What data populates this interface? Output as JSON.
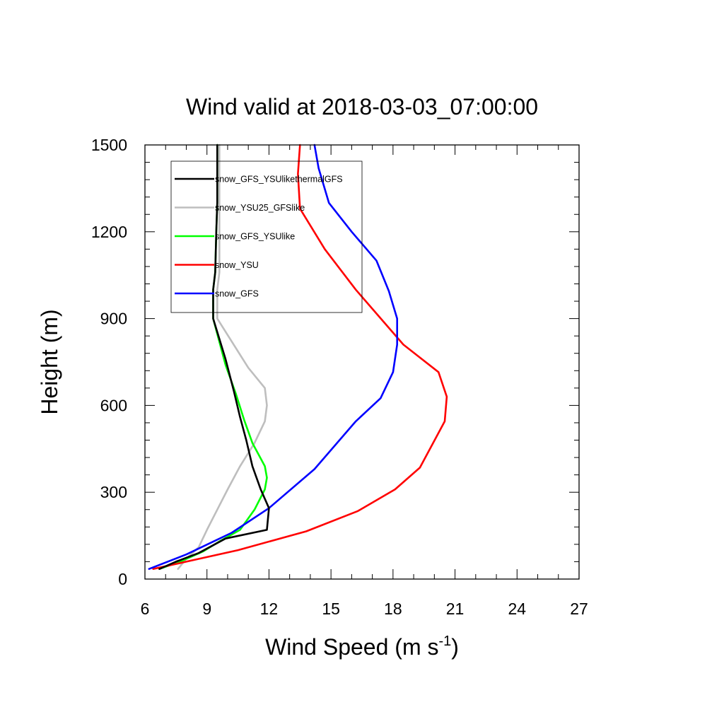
{
  "chart_data": {
    "type": "line",
    "title": "Wind valid at 2018-03-03_07:00:00",
    "xlabel": "Wind Speed (m s",
    "xlabel_sup": "-1",
    "xlabel_end": ")",
    "ylabel": "Height (m)",
    "xlim": [
      6,
      27
    ],
    "ylim": [
      0,
      1500
    ],
    "xticks": [
      6,
      9,
      12,
      15,
      18,
      21,
      24,
      27
    ],
    "yticks": [
      0,
      300,
      600,
      900,
      1200,
      1500
    ],
    "grid": false,
    "legend_position": "top-left",
    "series": [
      {
        "name": "snow_GFS_YSUlikethermalGFS",
        "color": "#000000",
        "x": [
          6.7,
          7.5,
          8.6,
          9.9,
          11.9,
          12.0,
          11.6,
          11.2,
          10.9,
          10.6,
          10.3,
          9.9,
          9.3,
          9.3,
          9.4,
          9.45,
          9.5,
          9.5,
          9.5
        ],
        "y": [
          35,
          60,
          90,
          140,
          170,
          245,
          310,
          390,
          480,
          560,
          650,
          760,
          900,
          1000,
          1060,
          1200,
          1300,
          1400,
          1500
        ]
      },
      {
        "name": "snow_YSU25_GFSlike",
        "color": "#bebebe",
        "x": [
          7.6,
          8.0,
          8.6,
          9.0,
          9.5,
          10.0,
          10.6,
          11.3,
          11.8,
          11.9,
          11.8,
          11.0,
          9.5,
          9.5,
          9.6,
          9.6,
          9.6,
          9.6
        ],
        "y": [
          35,
          70,
          110,
          170,
          240,
          310,
          390,
          470,
          545,
          600,
          660,
          730,
          900,
          1000,
          1060,
          1200,
          1300,
          1500
        ]
      },
      {
        "name": "snow_GFS_YSUlike",
        "color": "#00ff00",
        "x": [
          6.7,
          7.7,
          8.8,
          9.6,
          10.6,
          11.3,
          11.8,
          11.9,
          11.8,
          11.2,
          10.8,
          10.4,
          9.9,
          9.3,
          9.3,
          9.4,
          9.45,
          9.5,
          9.5
        ],
        "y": [
          35,
          60,
          95,
          130,
          170,
          240,
          310,
          350,
          390,
          470,
          550,
          640,
          740,
          900,
          1000,
          1060,
          1200,
          1300,
          1500
        ]
      },
      {
        "name": "snow_YSU",
        "color": "#ff0000",
        "x": [
          6.4,
          8.0,
          10.5,
          13.8,
          16.3,
          18.1,
          19.3,
          19.9,
          20.5,
          20.6,
          20.2,
          18.5,
          16.2,
          14.7,
          13.5,
          13.4,
          13.5
        ],
        "y": [
          35,
          60,
          100,
          165,
          235,
          310,
          385,
          465,
          545,
          630,
          715,
          810,
          1000,
          1140,
          1280,
          1400,
          1500
        ]
      },
      {
        "name": "snow_GFS",
        "color": "#0000ff",
        "x": [
          6.2,
          8.0,
          10.2,
          12.0,
          14.2,
          16.2,
          17.4,
          18.0,
          18.2,
          18.2,
          17.8,
          17.2,
          16.0,
          14.9,
          14.4,
          14.2
        ],
        "y": [
          35,
          85,
          160,
          245,
          380,
          545,
          625,
          715,
          810,
          900,
          995,
          1100,
          1200,
          1300,
          1420,
          1500
        ]
      }
    ]
  },
  "colors": {
    "background": "#ffffff",
    "axis": "#000000",
    "legend_border": "#000000"
  }
}
